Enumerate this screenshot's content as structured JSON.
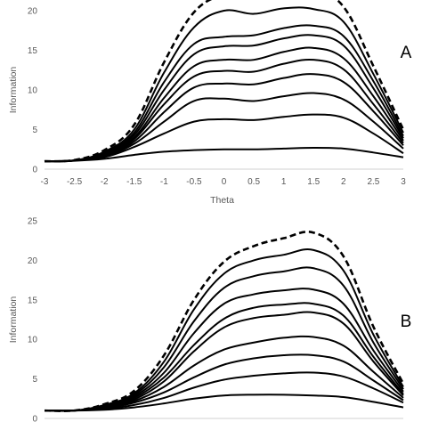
{
  "chart_data": [
    {
      "type": "line",
      "panel_label": "A",
      "xlabel": "Theta",
      "ylabel": "Information",
      "xlim": [
        -3,
        3
      ],
      "ylim": [
        0,
        20
      ],
      "x_ticks": [
        "-3",
        "-2.5",
        "-2",
        "-1.5",
        "-1",
        "-0.5",
        "0",
        "0.5",
        "1",
        "1.5",
        "2",
        "2.5",
        "3"
      ],
      "y_ticks": [
        "0",
        "5",
        "10",
        "15",
        "20"
      ],
      "grid": false,
      "legend": "none",
      "x": [
        -3,
        -2.5,
        -2,
        -1.5,
        -1,
        -0.5,
        0,
        0.5,
        1,
        1.5,
        2,
        2.5,
        3
      ],
      "series": [
        {
          "style": "solid",
          "values": [
            1.0,
            1.05,
            1.3,
            1.8,
            2.2,
            2.4,
            2.5,
            2.5,
            2.6,
            2.7,
            2.6,
            2.1,
            1.5
          ]
        },
        {
          "style": "solid",
          "values": [
            1.0,
            1.1,
            1.5,
            2.8,
            4.5,
            6.0,
            6.3,
            6.2,
            6.6,
            6.9,
            6.5,
            4.5,
            2.0
          ]
        },
        {
          "style": "solid",
          "values": [
            1.0,
            1.1,
            1.6,
            3.2,
            6.0,
            8.6,
            8.9,
            8.6,
            9.2,
            9.6,
            8.8,
            6.0,
            2.6
          ]
        },
        {
          "style": "solid",
          "values": [
            1.0,
            1.1,
            1.7,
            3.5,
            7.2,
            10.3,
            10.8,
            10.7,
            11.5,
            12.0,
            11.0,
            7.3,
            3.0
          ]
        },
        {
          "style": "solid",
          "values": [
            1.0,
            1.1,
            1.8,
            3.8,
            8.2,
            11.7,
            12.4,
            12.3,
            13.3,
            13.8,
            12.6,
            8.2,
            3.3
          ]
        },
        {
          "style": "solid",
          "values": [
            1.0,
            1.1,
            1.9,
            4.0,
            9.0,
            13.0,
            13.8,
            13.8,
            14.8,
            15.3,
            14.0,
            9.2,
            3.6
          ]
        },
        {
          "style": "solid",
          "values": [
            1.0,
            1.1,
            2.0,
            4.3,
            10.0,
            14.5,
            15.5,
            15.6,
            16.5,
            16.9,
            15.6,
            10.2,
            3.9
          ]
        },
        {
          "style": "solid",
          "values": [
            1.0,
            1.1,
            2.1,
            4.6,
            11.0,
            15.8,
            16.7,
            16.9,
            17.8,
            18.1,
            16.8,
            11.1,
            4.2
          ]
        },
        {
          "style": "solid",
          "values": [
            1.0,
            1.1,
            2.2,
            5.0,
            12.2,
            17.9,
            20.0,
            19.6,
            20.3,
            20.2,
            18.6,
            12.0,
            4.6
          ]
        },
        {
          "style": "dashed",
          "values": [
            1.0,
            1.15,
            2.4,
            5.6,
            13.5,
            19.8,
            22.0,
            22.0,
            22.6,
            22.6,
            20.5,
            13.0,
            5.0
          ]
        }
      ]
    },
    {
      "type": "line",
      "panel_label": "B",
      "ylabel": "Information",
      "xlim": [
        -3,
        3
      ],
      "ylim": [
        0,
        25
      ],
      "y_ticks": [
        "0",
        "5",
        "10",
        "15",
        "20",
        "25"
      ],
      "grid": false,
      "legend": "none",
      "x": [
        -3,
        -2.5,
        -2,
        -1.5,
        -1,
        -0.5,
        0,
        0.5,
        1,
        1.5,
        2,
        2.5,
        3
      ],
      "series": [
        {
          "style": "solid",
          "values": [
            1.0,
            1.0,
            1.1,
            1.4,
            1.9,
            2.5,
            2.9,
            3.0,
            3.0,
            2.9,
            2.7,
            2.1,
            1.4
          ]
        },
        {
          "style": "solid",
          "values": [
            1.0,
            1.0,
            1.2,
            1.7,
            2.6,
            3.9,
            4.9,
            5.4,
            5.7,
            5.8,
            5.3,
            3.8,
            2.0
          ]
        },
        {
          "style": "solid",
          "values": [
            1.0,
            1.0,
            1.3,
            2.0,
            3.3,
            5.2,
            6.8,
            7.6,
            8.0,
            8.0,
            7.2,
            4.8,
            2.3
          ]
        },
        {
          "style": "solid",
          "values": [
            1.0,
            1.0,
            1.4,
            2.2,
            4.0,
            6.7,
            8.7,
            9.6,
            10.2,
            10.3,
            9.2,
            5.9,
            2.6
          ]
        },
        {
          "style": "solid",
          "values": [
            1.0,
            1.0,
            1.4,
            2.4,
            4.7,
            8.5,
            11.5,
            12.7,
            13.1,
            13.4,
            12.0,
            7.2,
            2.9
          ]
        },
        {
          "style": "solid",
          "values": [
            1.0,
            1.0,
            1.5,
            2.6,
            5.2,
            9.3,
            12.6,
            14.0,
            14.4,
            14.5,
            13.0,
            7.8,
            3.1
          ]
        },
        {
          "style": "solid",
          "values": [
            1.0,
            1.0,
            1.5,
            2.8,
            5.8,
            10.8,
            14.5,
            15.7,
            16.2,
            16.3,
            14.5,
            8.6,
            3.4
          ]
        },
        {
          "style": "solid",
          "values": [
            1.0,
            1.0,
            1.6,
            3.0,
            6.5,
            12.3,
            16.5,
            18.0,
            18.6,
            19.0,
            16.8,
            9.6,
            3.7
          ]
        },
        {
          "style": "solid",
          "values": [
            1.0,
            1.0,
            1.7,
            3.2,
            7.2,
            13.8,
            18.3,
            20.0,
            20.7,
            21.3,
            18.7,
            10.6,
            4.0
          ]
        },
        {
          "style": "dashed",
          "values": [
            1.0,
            1.0,
            1.8,
            3.5,
            8.0,
            15.0,
            19.8,
            21.8,
            22.8,
            23.5,
            20.5,
            11.6,
            4.4
          ]
        }
      ]
    }
  ]
}
